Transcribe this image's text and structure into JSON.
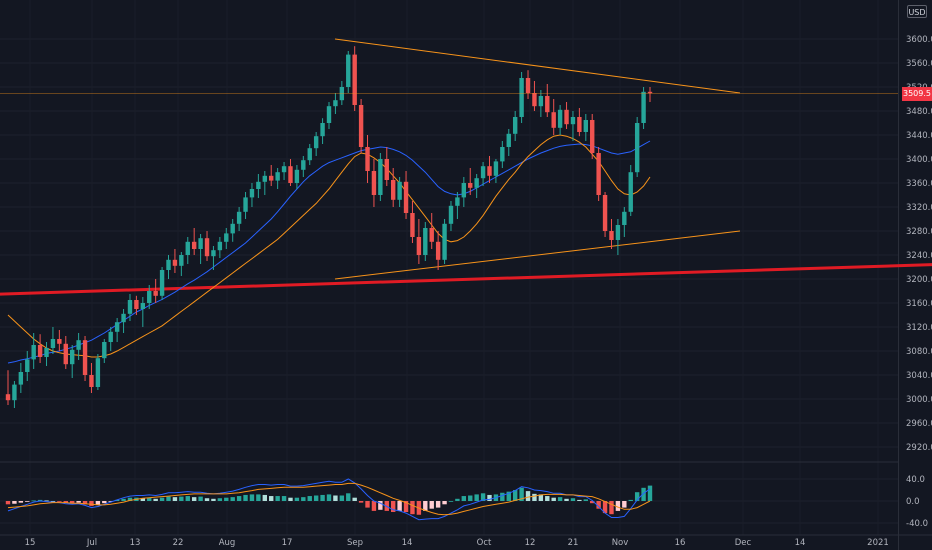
{
  "currency_button": {
    "label": "USD"
  },
  "price_label": {
    "value": "3509.5"
  },
  "chart_data": [
    {
      "type": "candlestick",
      "y_ticks": [
        2920.0,
        2960.0,
        3000.0,
        3040.0,
        3080.0,
        3120.0,
        3160.0,
        3200.0,
        3240.0,
        3280.0,
        3320.0,
        3360.0,
        3400.0,
        3440.0,
        3480.0,
        3520.0,
        3560.0,
        3600.0
      ],
      "y_tick_labels": [
        "2920.0",
        "2960.0",
        "3000.0",
        "3040.0",
        "3080.0",
        "3120.0",
        "3160.0",
        "3200.0",
        "3240.0",
        "3280.0",
        "3320.0",
        "3360.0",
        "3400.0",
        "3440.0",
        "3480.0",
        "3520.0",
        "3560.0",
        "3600.0"
      ],
      "ylim": [
        2895,
        3660
      ],
      "x_tick_labels": [
        "15",
        "Jul",
        "13",
        "22",
        "Aug",
        "17",
        "Sep",
        "14",
        "Oct",
        "12",
        "21",
        "Nov",
        "16",
        "Dec",
        "14",
        "2021"
      ],
      "last_price": 3509.5,
      "ohlc": [
        [
          3008,
          3048,
          2990,
          2998
        ],
        [
          2998,
          3030,
          2985,
          3024
        ],
        [
          3024,
          3060,
          3010,
          3045
        ],
        [
          3045,
          3080,
          3030,
          3066
        ],
        [
          3066,
          3110,
          3050,
          3090
        ],
        [
          3090,
          3108,
          3060,
          3070
        ],
        [
          3070,
          3095,
          3055,
          3085
        ],
        [
          3085,
          3120,
          3075,
          3100
        ],
        [
          3100,
          3115,
          3080,
          3092
        ],
        [
          3092,
          3105,
          3050,
          3058
        ],
        [
          3058,
          3090,
          3035,
          3082
        ],
        [
          3082,
          3110,
          3065,
          3098
        ],
        [
          3098,
          3105,
          3030,
          3040
        ],
        [
          3040,
          3060,
          3010,
          3020
        ],
        [
          3020,
          3075,
          3015,
          3068
        ],
        [
          3068,
          3100,
          3060,
          3095
        ],
        [
          3095,
          3120,
          3080,
          3112
        ],
        [
          3112,
          3135,
          3095,
          3128
        ],
        [
          3128,
          3150,
          3110,
          3142
        ],
        [
          3142,
          3175,
          3130,
          3165
        ],
        [
          3165,
          3172,
          3140,
          3150
        ],
        [
          3150,
          3170,
          3120,
          3160
        ],
        [
          3160,
          3190,
          3150,
          3180
        ],
        [
          3180,
          3200,
          3160,
          3172
        ],
        [
          3172,
          3220,
          3165,
          3215
        ],
        [
          3215,
          3240,
          3200,
          3232
        ],
        [
          3232,
          3250,
          3210,
          3222
        ],
        [
          3222,
          3245,
          3205,
          3240
        ],
        [
          3240,
          3270,
          3225,
          3262
        ],
        [
          3262,
          3285,
          3240,
          3250
        ],
        [
          3250,
          3275,
          3225,
          3268
        ],
        [
          3268,
          3280,
          3230,
          3238
        ],
        [
          3238,
          3255,
          3215,
          3248
        ],
        [
          3248,
          3270,
          3235,
          3262
        ],
        [
          3262,
          3285,
          3250,
          3276
        ],
        [
          3276,
          3300,
          3262,
          3292
        ],
        [
          3292,
          3320,
          3280,
          3312
        ],
        [
          3312,
          3345,
          3300,
          3336
        ],
        [
          3336,
          3360,
          3320,
          3350
        ],
        [
          3350,
          3375,
          3335,
          3362
        ],
        [
          3362,
          3380,
          3340,
          3372
        ],
        [
          3372,
          3390,
          3355,
          3364
        ],
        [
          3364,
          3385,
          3350,
          3378
        ],
        [
          3378,
          3395,
          3365,
          3388
        ],
        [
          3388,
          3400,
          3355,
          3360
        ],
        [
          3360,
          3390,
          3350,
          3382
        ],
        [
          3382,
          3405,
          3370,
          3398
        ],
        [
          3398,
          3425,
          3390,
          3418
        ],
        [
          3418,
          3445,
          3405,
          3438
        ],
        [
          3438,
          3468,
          3425,
          3460
        ],
        [
          3460,
          3495,
          3450,
          3488
        ],
        [
          3488,
          3510,
          3475,
          3498
        ],
        [
          3498,
          3530,
          3490,
          3520
        ],
        [
          3520,
          3580,
          3510,
          3574
        ],
        [
          3574,
          3588,
          3480,
          3490
        ],
        [
          3490,
          3500,
          3410,
          3420
        ],
        [
          3420,
          3440,
          3360,
          3380
        ],
        [
          3380,
          3400,
          3320,
          3340
        ],
        [
          3340,
          3410,
          3330,
          3400
        ],
        [
          3400,
          3420,
          3355,
          3365
        ],
        [
          3365,
          3385,
          3320,
          3332
        ],
        [
          3332,
          3370,
          3320,
          3362
        ],
        [
          3362,
          3380,
          3300,
          3310
        ],
        [
          3310,
          3330,
          3260,
          3270
        ],
        [
          3270,
          3300,
          3225,
          3240
        ],
        [
          3240,
          3295,
          3230,
          3285
        ],
        [
          3285,
          3310,
          3250,
          3262
        ],
        [
          3262,
          3280,
          3215,
          3232
        ],
        [
          3232,
          3300,
          3225,
          3292
        ],
        [
          3292,
          3330,
          3280,
          3322
        ],
        [
          3322,
          3345,
          3300,
          3336
        ],
        [
          3336,
          3370,
          3320,
          3360
        ],
        [
          3360,
          3385,
          3340,
          3352
        ],
        [
          3352,
          3375,
          3335,
          3368
        ],
        [
          3368,
          3395,
          3355,
          3388
        ],
        [
          3388,
          3405,
          3360,
          3372
        ],
        [
          3372,
          3400,
          3360,
          3396
        ],
        [
          3396,
          3430,
          3385,
          3420
        ],
        [
          3420,
          3450,
          3405,
          3442
        ],
        [
          3442,
          3480,
          3430,
          3470
        ],
        [
          3470,
          3545,
          3460,
          3535
        ],
        [
          3535,
          3548,
          3500,
          3510
        ],
        [
          3510,
          3530,
          3480,
          3488
        ],
        [
          3488,
          3515,
          3470,
          3505
        ],
        [
          3505,
          3525,
          3470,
          3478
        ],
        [
          3478,
          3500,
          3440,
          3452
        ],
        [
          3452,
          3490,
          3440,
          3482
        ],
        [
          3482,
          3495,
          3450,
          3458
        ],
        [
          3458,
          3480,
          3430,
          3470
        ],
        [
          3470,
          3485,
          3438,
          3445
        ],
        [
          3445,
          3475,
          3430,
          3465
        ],
        [
          3465,
          3475,
          3400,
          3410
        ],
        [
          3410,
          3420,
          3330,
          3340
        ],
        [
          3340,
          3345,
          3270,
          3280
        ],
        [
          3280,
          3300,
          3250,
          3265
        ],
        [
          3265,
          3300,
          3240,
          3290
        ],
        [
          3290,
          3320,
          3270,
          3312
        ],
        [
          3312,
          3390,
          3305,
          3378
        ],
        [
          3378,
          3470,
          3370,
          3460
        ],
        [
          3460,
          3520,
          3450,
          3512
        ],
        [
          3512,
          3520,
          3495,
          3509.5
        ]
      ],
      "moving_averages": [
        {
          "values": [
            3060,
            3062,
            3065,
            3067,
            3070,
            3072,
            3076,
            3078,
            3080,
            3083,
            3086,
            3090,
            3094,
            3098,
            3104,
            3110,
            3117,
            3124,
            3131,
            3138,
            3145,
            3150,
            3156,
            3161,
            3166,
            3172,
            3178,
            3185,
            3192,
            3198,
            3205,
            3212,
            3220,
            3228,
            3236,
            3244,
            3252,
            3260,
            3270,
            3280,
            3290,
            3300,
            3312,
            3325,
            3338,
            3350,
            3362,
            3372,
            3380,
            3388,
            3394,
            3398,
            3402,
            3406,
            3410,
            3414,
            3416,
            3418,
            3420,
            3419,
            3416,
            3412,
            3406,
            3398,
            3388,
            3378,
            3366,
            3354,
            3346,
            3342,
            3340,
            3342,
            3346,
            3352,
            3358,
            3364,
            3370,
            3376,
            3382,
            3388,
            3394,
            3400,
            3405,
            3410,
            3414,
            3418,
            3421,
            3423,
            3424,
            3425,
            3424,
            3422,
            3418,
            3414,
            3410,
            3408,
            3410,
            3412,
            3418,
            3424,
            3430
          ]
        },
        {
          "values": [
            3140,
            3130,
            3120,
            3110,
            3100,
            3092,
            3085,
            3080,
            3077,
            3075,
            3074,
            3073,
            3072,
            3070,
            3070,
            3072,
            3075,
            3080,
            3086,
            3092,
            3098,
            3104,
            3110,
            3116,
            3122,
            3130,
            3138,
            3146,
            3154,
            3162,
            3170,
            3178,
            3186,
            3194,
            3202,
            3210,
            3218,
            3226,
            3234,
            3242,
            3250,
            3258,
            3266,
            3276,
            3286,
            3296,
            3306,
            3316,
            3326,
            3338,
            3350,
            3364,
            3378,
            3392,
            3404,
            3410,
            3408,
            3402,
            3394,
            3384,
            3372,
            3360,
            3346,
            3332,
            3318,
            3304,
            3290,
            3276,
            3266,
            3262,
            3264,
            3270,
            3280,
            3292,
            3306,
            3322,
            3338,
            3352,
            3366,
            3378,
            3392,
            3404,
            3414,
            3424,
            3432,
            3438,
            3440,
            3438,
            3434,
            3428,
            3420,
            3408,
            3396,
            3380,
            3364,
            3350,
            3342,
            3340,
            3345,
            3355,
            3370
          ]
        }
      ],
      "trendlines": [
        {
          "from": [
            0,
            3600
          ],
          "to": [
            130,
            3510
          ]
        },
        {
          "from": [
            0,
            3200
          ],
          "to": [
            130,
            3280
          ]
        },
        {
          "from": [
            -60,
            3155
          ],
          "to": [
            171,
            3233
          ]
        }
      ]
    },
    {
      "type": "macd",
      "y_ticks": [
        40.0,
        0.0,
        -40.0
      ],
      "y_tick_labels": [
        "40.0",
        "0.0",
        "-40.0"
      ],
      "ylim": [
        -55,
        60
      ],
      "histogram": [
        -6,
        -5,
        -3,
        -1,
        1,
        2,
        1,
        0,
        -1,
        -3,
        -4,
        -3,
        -6,
        -9,
        -7,
        -4,
        -1,
        2,
        4,
        6,
        6,
        5,
        6,
        4,
        6,
        8,
        7,
        8,
        9,
        7,
        8,
        5,
        4,
        5,
        6,
        7,
        9,
        11,
        12,
        12,
        11,
        9,
        9,
        9,
        6,
        6,
        7,
        9,
        10,
        11,
        12,
        10,
        10,
        14,
        6,
        -3,
        -12,
        -18,
        -16,
        -18,
        -20,
        -18,
        -20,
        -24,
        -25,
        -18,
        -14,
        -12,
        -6,
        0,
        4,
        9,
        10,
        12,
        14,
        11,
        12,
        15,
        17,
        20,
        24,
        18,
        13,
        12,
        9,
        6,
        7,
        4,
        5,
        2,
        3,
        -4,
        -14,
        -22,
        -24,
        -18,
        -12,
        2,
        16,
        24,
        28
      ],
      "macd_line": [
        -18,
        -14,
        -10,
        -6,
        -2,
        0,
        -1,
        -2,
        -3,
        -5,
        -6,
        -5,
        -8,
        -12,
        -10,
        -6,
        -2,
        2,
        6,
        9,
        10,
        10,
        11,
        10,
        12,
        15,
        15,
        16,
        17,
        16,
        16,
        14,
        13,
        14,
        16,
        18,
        21,
        25,
        28,
        30,
        30,
        29,
        30,
        30,
        27,
        27,
        28,
        30,
        32,
        34,
        36,
        34,
        34,
        40,
        33,
        22,
        10,
        0,
        -4,
        -10,
        -16,
        -18,
        -22,
        -28,
        -34,
        -33,
        -32,
        -32,
        -28,
        -22,
        -16,
        -9,
        -6,
        -2,
        2,
        3,
        6,
        10,
        14,
        19,
        26,
        24,
        20,
        19,
        17,
        14,
        14,
        11,
        11,
        8,
        8,
        1,
        -10,
        -22,
        -30,
        -30,
        -28,
        -14,
        2,
        14,
        22
      ],
      "signal_line": [
        -12,
        -11,
        -10,
        -9,
        -7,
        -5,
        -4,
        -3,
        -3,
        -3,
        -4,
        -4,
        -5,
        -6,
        -7,
        -7,
        -6,
        -4,
        -2,
        1,
        3,
        5,
        6,
        7,
        8,
        9,
        10,
        11,
        12,
        13,
        13,
        13,
        13,
        13,
        13,
        14,
        15,
        17,
        19,
        21,
        22,
        23,
        24,
        25,
        25,
        25,
        25,
        26,
        27,
        28,
        29,
        30,
        30,
        32,
        32,
        29,
        25,
        20,
        15,
        10,
        5,
        1,
        -3,
        -8,
        -13,
        -17,
        -21,
        -24,
        -25,
        -24,
        -22,
        -19,
        -16,
        -13,
        -10,
        -8,
        -6,
        -4,
        -2,
        1,
        4,
        7,
        9,
        11,
        12,
        12,
        12,
        11,
        11,
        10,
        9,
        8,
        4,
        -1,
        -6,
        -11,
        -15,
        -15,
        -12,
        -6,
        0
      ]
    }
  ]
}
